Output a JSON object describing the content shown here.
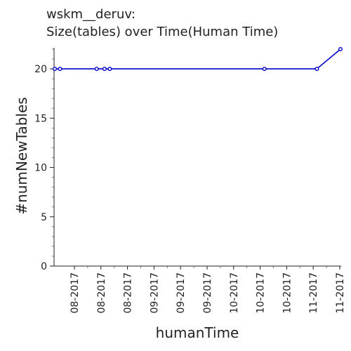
{
  "chart_data": {
    "type": "line",
    "title_line1": "wskm__deruv:",
    "title_line2": "Size(tables) over Time(Human Time)",
    "xlabel": "humanTime",
    "ylabel": "#numNewTables",
    "x_tick_labels": [
      "08-2017",
      "08-2017",
      "08-2017",
      "09-2017",
      "09-2017",
      "09-2017",
      "10-2017",
      "10-2017",
      "10-2017",
      "11-2017",
      "11-2017"
    ],
    "y_ticks": [
      0,
      5,
      10,
      15,
      20
    ],
    "ylim": [
      0,
      22
    ],
    "grid": false,
    "series": [
      {
        "color": "#0000cc",
        "points": [
          {
            "x": "2017-07-27",
            "y": 20
          },
          {
            "x": "2017-07-29",
            "y": 20
          },
          {
            "x": "2017-08-12",
            "y": 20
          },
          {
            "x": "2017-08-15",
            "y": 20
          },
          {
            "x": "2017-08-17",
            "y": 20
          },
          {
            "x": "2017-10-15",
            "y": 20
          },
          {
            "x": "2017-11-04",
            "y": 20
          },
          {
            "x": "2017-11-13",
            "y": 22
          }
        ]
      }
    ]
  }
}
